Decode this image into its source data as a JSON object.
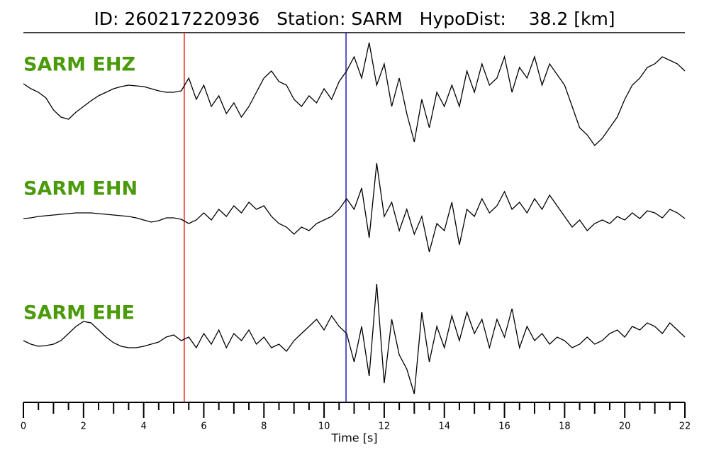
{
  "chart_data": {
    "type": "line",
    "title": "ID: 260217220936   Station: SARM   HypoDist:    38.2 [km]",
    "x_label": "Time [s]",
    "xlim": [
      0,
      22
    ],
    "xticks": [
      0,
      2,
      4,
      6,
      8,
      10,
      12,
      14,
      16,
      18,
      20,
      22
    ],
    "xminorticks": [
      0.5,
      1,
      1.5,
      2.5,
      3,
      3.5,
      4.5,
      5,
      5.5,
      6.5,
      7,
      7.5,
      8.5,
      9,
      9.5,
      10.5,
      11,
      11.5,
      12.5,
      13,
      13.5,
      14.5,
      15,
      15.5,
      16.5,
      17,
      17.5,
      18.5,
      19,
      19.5,
      20.5,
      21,
      21.5
    ],
    "ylim": [
      -87.5,
      87.5
    ],
    "label_color": "#4a9a0a",
    "vlines": [
      {
        "value": 5.35,
        "color": "#e8231c"
      },
      {
        "value": 10.73,
        "color": "#1f1fb0"
      }
    ],
    "x": [
      0,
      0.25,
      0.5,
      0.75,
      1,
      1.25,
      1.5,
      1.75,
      2,
      2.25,
      2.5,
      2.75,
      3,
      3.25,
      3.5,
      3.75,
      4,
      4.25,
      4.5,
      4.75,
      5,
      5.25,
      5.5,
      5.75,
      6,
      6.25,
      6.5,
      6.75,
      7,
      7.25,
      7.5,
      7.75,
      8,
      8.25,
      8.5,
      8.75,
      9,
      9.25,
      9.5,
      9.75,
      10,
      10.25,
      10.5,
      10.75,
      11,
      11.25,
      11.5,
      11.75,
      12,
      12.25,
      12.5,
      12.75,
      13,
      13.25,
      13.5,
      13.75,
      14,
      14.25,
      14.5,
      14.75,
      15,
      15.25,
      15.5,
      15.75,
      16,
      16.25,
      16.5,
      16.75,
      17,
      17.25,
      17.5,
      17.75,
      18,
      18.25,
      18.5,
      18.75,
      19,
      19.25,
      19.5,
      19.75,
      20,
      20.25,
      20.5,
      20.75,
      21,
      21.25,
      21.5,
      21.75,
      22
    ],
    "series": [
      {
        "name": "SARM EHZ",
        "color": "#000000",
        "values": [
          12,
          5,
          0,
          -8,
          -25,
          -35,
          -38,
          -28,
          -20,
          -12,
          -5,
          0,
          5,
          8,
          10,
          9,
          8,
          5,
          2,
          0,
          0,
          2,
          20,
          -10,
          10,
          -20,
          -5,
          -30,
          -15,
          -35,
          -20,
          0,
          20,
          30,
          15,
          10,
          -10,
          -20,
          -5,
          -15,
          5,
          -10,
          15,
          30,
          50,
          20,
          70,
          10,
          40,
          -20,
          20,
          -30,
          -70,
          -10,
          -50,
          0,
          -20,
          10,
          -20,
          30,
          0,
          40,
          10,
          20,
          50,
          0,
          35,
          20,
          50,
          10,
          40,
          25,
          10,
          -20,
          -50,
          -60,
          -75,
          -65,
          -50,
          -35,
          -10,
          10,
          20,
          35,
          40,
          50,
          45,
          40,
          30
        ]
      },
      {
        "name": "SARM EHN",
        "color": "#000000",
        "values": [
          -3,
          -2,
          0,
          1,
          2,
          3,
          4,
          5,
          5,
          5,
          4,
          3,
          2,
          1,
          0,
          -2,
          -5,
          -8,
          -6,
          -2,
          -2,
          -4,
          -10,
          -5,
          5,
          -5,
          10,
          0,
          15,
          5,
          20,
          10,
          15,
          0,
          -10,
          -15,
          -25,
          -15,
          -20,
          -10,
          -5,
          0,
          10,
          25,
          10,
          40,
          -30,
          75,
          0,
          20,
          -20,
          10,
          -25,
          0,
          -50,
          -10,
          -20,
          20,
          -40,
          10,
          0,
          25,
          5,
          15,
          35,
          10,
          20,
          5,
          25,
          10,
          30,
          15,
          0,
          -15,
          -5,
          -20,
          -10,
          -5,
          -10,
          0,
          -5,
          5,
          -3,
          8,
          5,
          -2,
          10,
          5,
          -3
        ]
      },
      {
        "name": "SARM EHE",
        "color": "#000000",
        "values": [
          0,
          -5,
          -8,
          -7,
          -5,
          0,
          10,
          20,
          27,
          25,
          15,
          5,
          -3,
          -8,
          -10,
          -10,
          -8,
          -5,
          -2,
          5,
          8,
          0,
          5,
          -10,
          10,
          -5,
          15,
          -10,
          10,
          0,
          15,
          -5,
          5,
          -10,
          -5,
          -15,
          0,
          10,
          20,
          30,
          15,
          35,
          20,
          10,
          -30,
          20,
          -50,
          80,
          -60,
          30,
          -20,
          -40,
          -75,
          40,
          -30,
          20,
          -10,
          35,
          0,
          40,
          10,
          30,
          -10,
          30,
          5,
          45,
          -10,
          20,
          0,
          10,
          -5,
          5,
          0,
          -10,
          -5,
          5,
          -5,
          0,
          10,
          15,
          5,
          20,
          15,
          25,
          20,
          10,
          25,
          15,
          5
        ]
      }
    ]
  }
}
